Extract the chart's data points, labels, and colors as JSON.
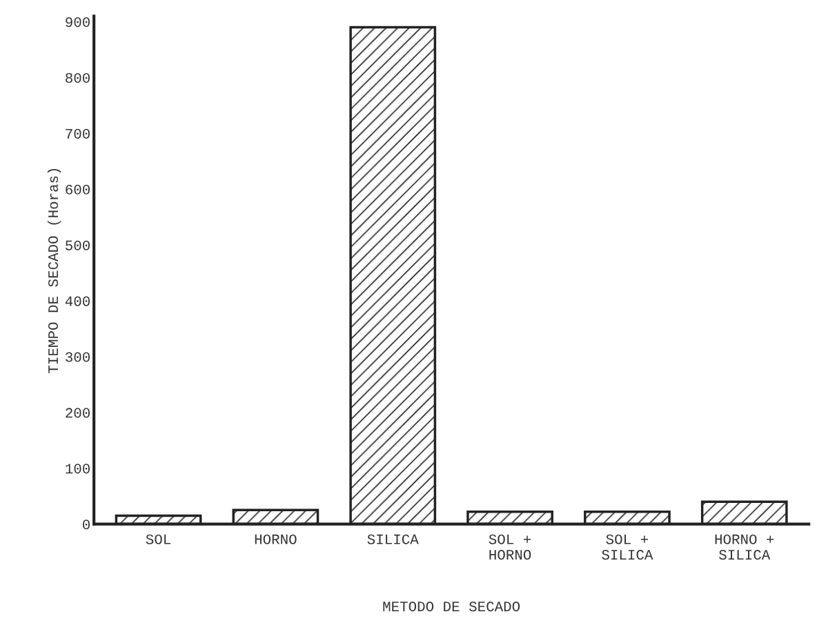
{
  "chart_data": {
    "type": "bar",
    "xlabel": "METODO DE SECADO",
    "ylabel": "TIEMPO DE SECADO (Horas)",
    "categories": [
      "SOL",
      "HORNO",
      "SILICA",
      "SOL +\nHORNO",
      "SOL +\nSILICA",
      "HORNO +\nSILICA"
    ],
    "values": [
      15,
      25,
      890,
      22,
      22,
      40
    ],
    "color": "#222222",
    "ylim": [
      0,
      910
    ],
    "yticks": [
      0,
      100,
      200,
      300,
      400,
      500,
      600,
      700,
      800,
      900
    ],
    "grid": false
  }
}
